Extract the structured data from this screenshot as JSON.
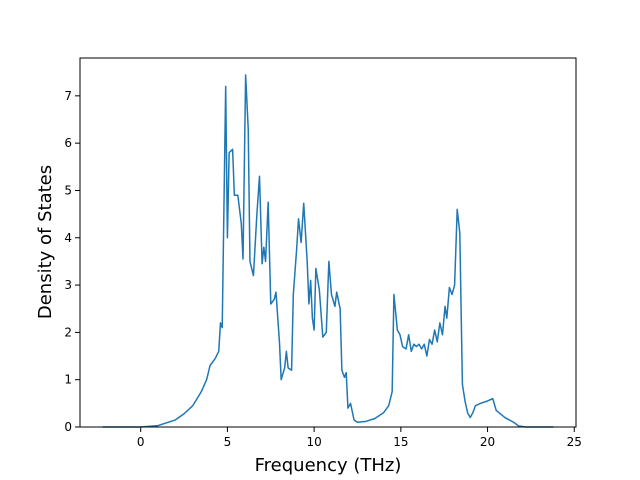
{
  "chart_data": {
    "type": "line",
    "x_label": "Frequency (THz)",
    "y_label": "Density of States",
    "xlim": [
      -3.5,
      25.1
    ],
    "ylim": [
      0,
      7.8
    ],
    "xticks": [
      0,
      5,
      10,
      15,
      20,
      25
    ],
    "yticks": [
      0,
      1,
      2,
      3,
      4,
      5,
      6,
      7
    ],
    "series": [
      {
        "color": "#1f77b4",
        "x": [
          -2.2,
          0,
          1,
          2,
          2.5,
          3,
          3.5,
          3.8,
          4.0,
          4.3,
          4.5,
          4.6,
          4.7,
          4.9,
          5.0,
          5.1,
          5.3,
          5.4,
          5.6,
          5.8,
          5.9,
          6.05,
          6.2,
          6.3,
          6.5,
          6.7,
          6.85,
          7.0,
          7.1,
          7.2,
          7.35,
          7.5,
          7.7,
          7.8,
          8.0,
          8.1,
          8.3,
          8.4,
          8.5,
          8.7,
          8.8,
          9.0,
          9.1,
          9.25,
          9.4,
          9.6,
          9.7,
          9.8,
          9.9,
          10.0,
          10.1,
          10.3,
          10.5,
          10.7,
          10.85,
          11.0,
          11.2,
          11.3,
          11.5,
          11.6,
          11.75,
          11.85,
          11.95,
          12.1,
          12.3,
          12.5,
          13.0,
          13.5,
          14.0,
          14.3,
          14.5,
          14.6,
          14.8,
          14.95,
          15.1,
          15.3,
          15.45,
          15.6,
          15.75,
          15.9,
          16.05,
          16.2,
          16.35,
          16.5,
          16.65,
          16.8,
          16.95,
          17.1,
          17.25,
          17.4,
          17.55,
          17.65,
          17.8,
          17.95,
          18.1,
          18.25,
          18.4,
          18.55,
          18.7,
          18.85,
          19.0,
          19.15,
          19.3,
          19.6,
          20.0,
          20.3,
          20.5,
          21.0,
          21.5,
          21.8,
          22.2,
          23.8
        ],
        "values": [
          0,
          0,
          0.03,
          0.15,
          0.28,
          0.45,
          0.75,
          1.0,
          1.3,
          1.45,
          1.6,
          2.2,
          2.1,
          7.2,
          4.0,
          5.8,
          5.87,
          4.9,
          4.9,
          4.3,
          3.55,
          7.44,
          6.3,
          3.5,
          3.2,
          4.5,
          5.3,
          3.45,
          3.8,
          3.5,
          4.75,
          2.6,
          2.7,
          2.85,
          1.8,
          1.0,
          1.25,
          1.6,
          1.25,
          1.2,
          2.8,
          3.8,
          4.4,
          3.9,
          4.73,
          3.5,
          2.6,
          3.1,
          2.3,
          2.05,
          3.35,
          2.9,
          1.9,
          2.0,
          3.5,
          2.8,
          2.55,
          2.85,
          2.5,
          1.2,
          1.05,
          1.15,
          0.4,
          0.5,
          0.15,
          0.1,
          0.12,
          0.18,
          0.3,
          0.45,
          0.75,
          2.8,
          2.05,
          1.95,
          1.7,
          1.65,
          1.95,
          1.6,
          1.75,
          1.7,
          1.75,
          1.65,
          1.75,
          1.5,
          1.85,
          1.75,
          2.05,
          1.8,
          2.2,
          1.95,
          2.55,
          2.3,
          2.95,
          2.8,
          3.0,
          4.6,
          4.1,
          0.9,
          0.55,
          0.3,
          0.2,
          0.3,
          0.45,
          0.5,
          0.55,
          0.6,
          0.35,
          0.2,
          0.1,
          0.02,
          0,
          0
        ]
      }
    ]
  }
}
